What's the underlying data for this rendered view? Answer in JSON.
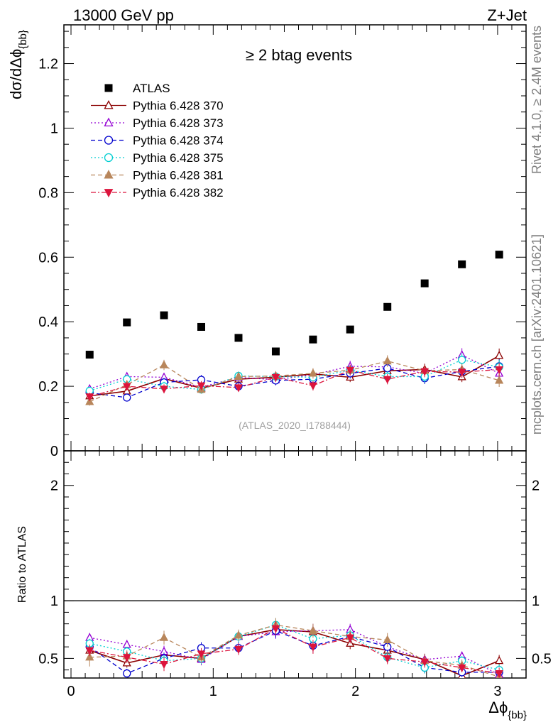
{
  "header": {
    "left_title": "13000 GeV pp",
    "right_title": "Z+Jet"
  },
  "side_labels": {
    "rivet": "Rivet 4.1.0, ≥ 2.4M events",
    "mcplots": "mcplots.cern.ch [arXiv:2401.10621]"
  },
  "chart_data": [
    {
      "type": "scatter",
      "panel": "main",
      "title": "≥ 2 btag events",
      "watermark": "(ATLAS_2020_I1788444)",
      "ylabel": "dσ/dΔϕ",
      "ylabel_sub": "{bb}",
      "xlabel": "Δϕ",
      "xlabel_sub": "{bb}",
      "xlim": [
        -0.05,
        3.2
      ],
      "ylim": [
        0,
        1.32
      ],
      "ytick_labels": [
        {
          "value": 0,
          "label": "0"
        },
        {
          "value": 0.2,
          "label": "0.2"
        },
        {
          "value": 0.4,
          "label": "0.4"
        },
        {
          "value": 0.6,
          "label": "0.6"
        },
        {
          "value": 0.8,
          "label": "0.8"
        },
        {
          "value": 1.0,
          "label": "1"
        },
        {
          "value": 1.2,
          "label": "1.2"
        }
      ],
      "legend_position": "top-left",
      "x": [
        0.131,
        0.393,
        0.654,
        0.916,
        1.178,
        1.44,
        1.702,
        1.963,
        2.225,
        2.487,
        2.749,
        3.011
      ],
      "series": [
        {
          "name": "ATLAS",
          "color": "#000000",
          "marker": "square-filled",
          "line": "none",
          "values": [
            0.298,
            0.398,
            0.42,
            0.384,
            0.35,
            0.308,
            0.345,
            0.376,
            0.446,
            0.519,
            0.578,
            0.608
          ]
        },
        {
          "name": "Pythia 6.428 370",
          "color": "#8b0000",
          "marker": "triangle-up-open",
          "line": "solid",
          "values": [
            0.17,
            0.185,
            0.224,
            0.194,
            0.222,
            0.228,
            0.238,
            0.228,
            0.248,
            0.252,
            0.229,
            0.295
          ],
          "errors": [
            0.012,
            0.012,
            0.015,
            0.013,
            0.014,
            0.015,
            0.016,
            0.015,
            0.017,
            0.018,
            0.016,
            0.022
          ]
        },
        {
          "name": "Pythia 6.428 373",
          "color": "#9400d3",
          "marker": "triangle-up-open",
          "line": "dotted",
          "values": [
            0.192,
            0.23,
            0.228,
            0.197,
            0.228,
            0.22,
            0.236,
            0.262,
            0.26,
            0.24,
            0.297,
            0.24
          ],
          "errors": [
            0.012,
            0.013,
            0.014,
            0.013,
            0.014,
            0.015,
            0.016,
            0.017,
            0.017,
            0.018,
            0.021,
            0.022
          ]
        },
        {
          "name": "Pythia 6.428 374",
          "color": "#0000cd",
          "marker": "circle-open",
          "line": "dashed",
          "values": [
            0.18,
            0.165,
            0.212,
            0.22,
            0.2,
            0.218,
            0.222,
            0.24,
            0.256,
            0.225,
            0.246,
            0.262
          ],
          "errors": [
            0.012,
            0.012,
            0.014,
            0.015,
            0.014,
            0.015,
            0.016,
            0.016,
            0.017,
            0.018,
            0.018,
            0.022
          ]
        },
        {
          "name": "Pythia 6.428 375",
          "color": "#00ced1",
          "marker": "circle-open",
          "line": "dotted",
          "values": [
            0.186,
            0.222,
            0.2,
            0.19,
            0.232,
            0.23,
            0.228,
            0.25,
            0.23,
            0.23,
            0.282,
            0.26
          ],
          "errors": [
            0.012,
            0.013,
            0.014,
            0.013,
            0.014,
            0.015,
            0.016,
            0.016,
            0.017,
            0.018,
            0.02,
            0.022
          ]
        },
        {
          "name": "Pythia 6.428 381",
          "color": "#b8865b",
          "marker": "triangle-up-filled",
          "line": "dashed",
          "values": [
            0.152,
            0.205,
            0.266,
            0.19,
            0.23,
            0.232,
            0.24,
            0.25,
            0.278,
            0.248,
            0.252,
            0.218
          ],
          "errors": [
            0.012,
            0.013,
            0.016,
            0.013,
            0.014,
            0.015,
            0.016,
            0.016,
            0.018,
            0.018,
            0.018,
            0.02
          ]
        },
        {
          "name": "Pythia 6.428 382",
          "color": "#dc143c",
          "marker": "triangle-down-filled",
          "line": "dashdot",
          "values": [
            0.168,
            0.2,
            0.192,
            0.202,
            0.196,
            0.228,
            0.202,
            0.25,
            0.222,
            0.246,
            0.244,
            0.252
          ],
          "errors": [
            0.012,
            0.013,
            0.014,
            0.014,
            0.013,
            0.015,
            0.015,
            0.017,
            0.016,
            0.018,
            0.018,
            0.021
          ]
        }
      ]
    },
    {
      "type": "scatter",
      "panel": "ratio",
      "ylabel": "Ratio to ATLAS",
      "xlim": [
        -0.05,
        3.2
      ],
      "ylim": [
        0.33,
        2.3
      ],
      "reference_line": 1,
      "xtick_labels": [
        {
          "value": 0,
          "label": "0"
        },
        {
          "value": 1,
          "label": "1"
        },
        {
          "value": 2,
          "label": "2"
        },
        {
          "value": 3,
          "label": "3"
        }
      ],
      "ytick_labels": [
        {
          "value": 0.5,
          "label": "0.5"
        },
        {
          "value": 1,
          "label": "1"
        },
        {
          "value": 2,
          "label": "2"
        }
      ],
      "x": [
        0.131,
        0.393,
        0.654,
        0.916,
        1.178,
        1.44,
        1.702,
        1.963,
        2.225,
        2.487,
        2.749,
        3.011
      ],
      "series": [
        {
          "name": "Pythia 6.428 370",
          "values": [
            0.57,
            0.46,
            0.53,
            0.5,
            0.69,
            0.75,
            0.73,
            0.63,
            0.57,
            0.49,
            0.35,
            0.48
          ],
          "errors": [
            0.04,
            0.04,
            0.05,
            0.05,
            0.05,
            0.06,
            0.06,
            0.05,
            0.05,
            0.05,
            0.04,
            0.05
          ]
        },
        {
          "name": "Pythia 6.428 373",
          "values": [
            0.68,
            0.62,
            0.56,
            0.49,
            0.69,
            0.73,
            0.74,
            0.75,
            0.6,
            0.49,
            0.52,
            0.36
          ],
          "errors": [
            0.04,
            0.04,
            0.05,
            0.05,
            0.05,
            0.06,
            0.06,
            0.05,
            0.05,
            0.05,
            0.04,
            0.05
          ]
        },
        {
          "name": "Pythia 6.428 374",
          "values": [
            0.6,
            0.37,
            0.5,
            0.59,
            0.59,
            0.74,
            0.61,
            0.69,
            0.6,
            0.42,
            0.38,
            0.38
          ],
          "errors": [
            0.04,
            0.04,
            0.05,
            0.05,
            0.05,
            0.06,
            0.06,
            0.05,
            0.05,
            0.05,
            0.04,
            0.05
          ]
        },
        {
          "name": "Pythia 6.428 375",
          "values": [
            0.63,
            0.56,
            0.48,
            0.5,
            0.69,
            0.79,
            0.67,
            0.7,
            0.51,
            0.42,
            0.48,
            0.4
          ],
          "errors": [
            0.04,
            0.04,
            0.05,
            0.05,
            0.05,
            0.06,
            0.06,
            0.05,
            0.05,
            0.05,
            0.04,
            0.05
          ]
        },
        {
          "name": "Pythia 6.428 381",
          "values": [
            0.51,
            0.52,
            0.68,
            0.51,
            0.7,
            0.79,
            0.74,
            0.69,
            0.66,
            0.48,
            0.44,
            0.34
          ],
          "errors": [
            0.08,
            0.05,
            0.06,
            0.05,
            0.05,
            0.06,
            0.06,
            0.05,
            0.06,
            0.06,
            0.05,
            0.05
          ]
        },
        {
          "name": "Pythia 6.428 382",
          "values": [
            0.57,
            0.51,
            0.45,
            0.54,
            0.58,
            0.76,
            0.6,
            0.68,
            0.5,
            0.47,
            0.42,
            0.37
          ],
          "errors": [
            0.05,
            0.05,
            0.06,
            0.05,
            0.05,
            0.06,
            0.06,
            0.05,
            0.05,
            0.05,
            0.04,
            0.05
          ]
        }
      ]
    }
  ]
}
